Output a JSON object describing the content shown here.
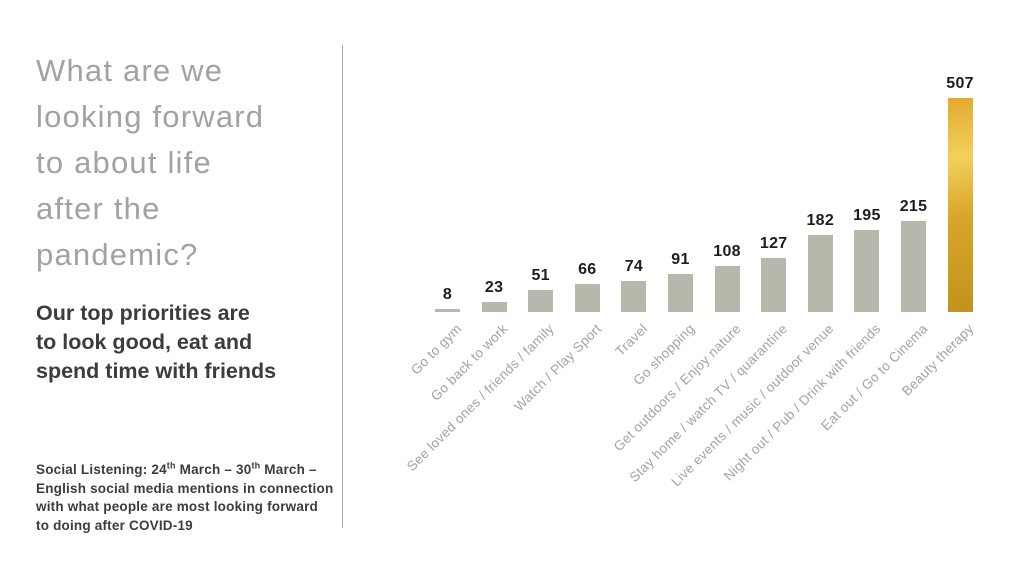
{
  "slide": {
    "title_lines": [
      "What are we",
      "looking forward",
      "to about life",
      "after the",
      "pandemic?"
    ],
    "subtitle_lines": [
      "Our top priorities are",
      "to look good, eat and",
      "spend time with friends"
    ],
    "footnote": {
      "line1_parts": {
        "a": "Social Listening: 24",
        "sup1": "th",
        "b": " March – 30",
        "sup2": "th",
        "c": " March –"
      },
      "line2": "English social media mentions in connection",
      "line3": "with what people are most looking forward",
      "line4": "to doing after COVID-19"
    }
  },
  "colors": {
    "background": "#ffffff",
    "title_text": "#a2a2a2",
    "body_text": "#3c3c3c",
    "divider": "#a9a9a9",
    "bar_default": "#b7b7ab",
    "bar_highlight_top": "#e3a82e",
    "bar_highlight_bright": "#f2d05c",
    "bar_highlight_mid": "#d9a62c",
    "bar_highlight_bottom": "#c2921b",
    "value_label": "#1d1d1b",
    "category_label": "#a3a3a3"
  },
  "chart_data": {
    "type": "bar",
    "title": "",
    "xlabel": "",
    "ylabel": "",
    "categories": [
      "Go to gym",
      "Go back to work",
      "See loved ones / friends / family",
      "Watch / Play Sport",
      "Travel",
      "Go shopping",
      "Get outdoors / Enjoy nature",
      "Stay home / watch TV / quarantine",
      "Live events / music / outdoor venue",
      "Night out / Pub / Drink with friends",
      "Eat out / Go to Cinema",
      "Beauty therapy"
    ],
    "values": [
      8,
      23,
      51,
      66,
      74,
      91,
      108,
      127,
      182,
      195,
      215,
      507
    ],
    "highlight_index": 11,
    "value_labels_shown": true,
    "grid": "off",
    "axis_lines": "none",
    "legend": "none",
    "ylim": [
      0,
      507
    ]
  }
}
